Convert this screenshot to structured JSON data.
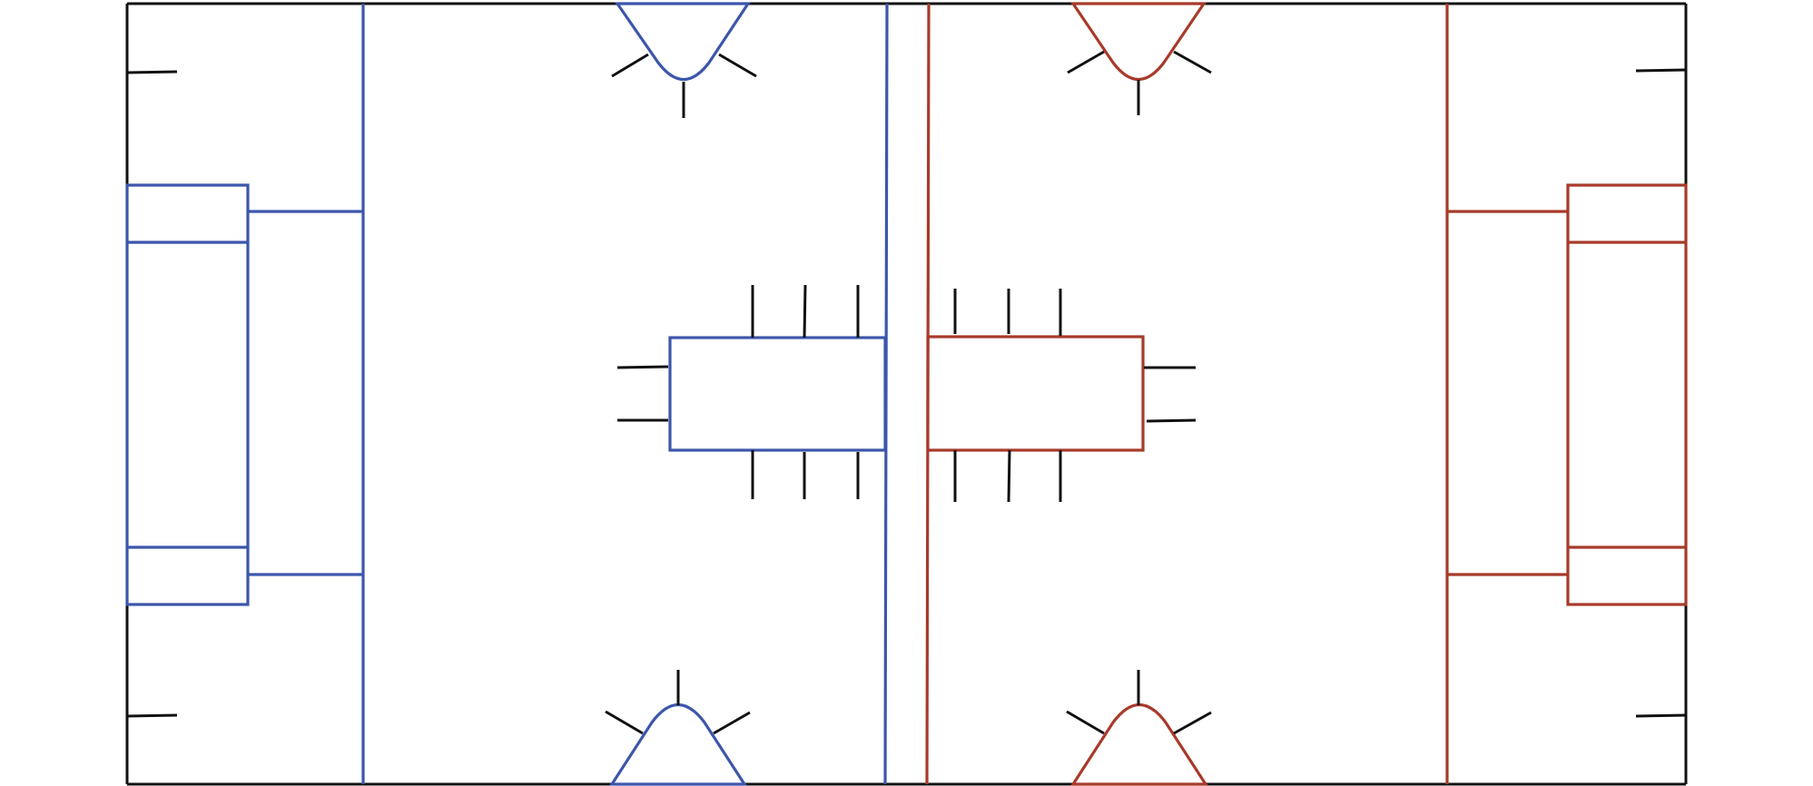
{
  "diagram": {
    "colors": {
      "left_team": "#3c56ab",
      "right_team": "#a83a2a",
      "boundary": "#111111",
      "tick": "#111111",
      "background": "#ffffff"
    }
  }
}
